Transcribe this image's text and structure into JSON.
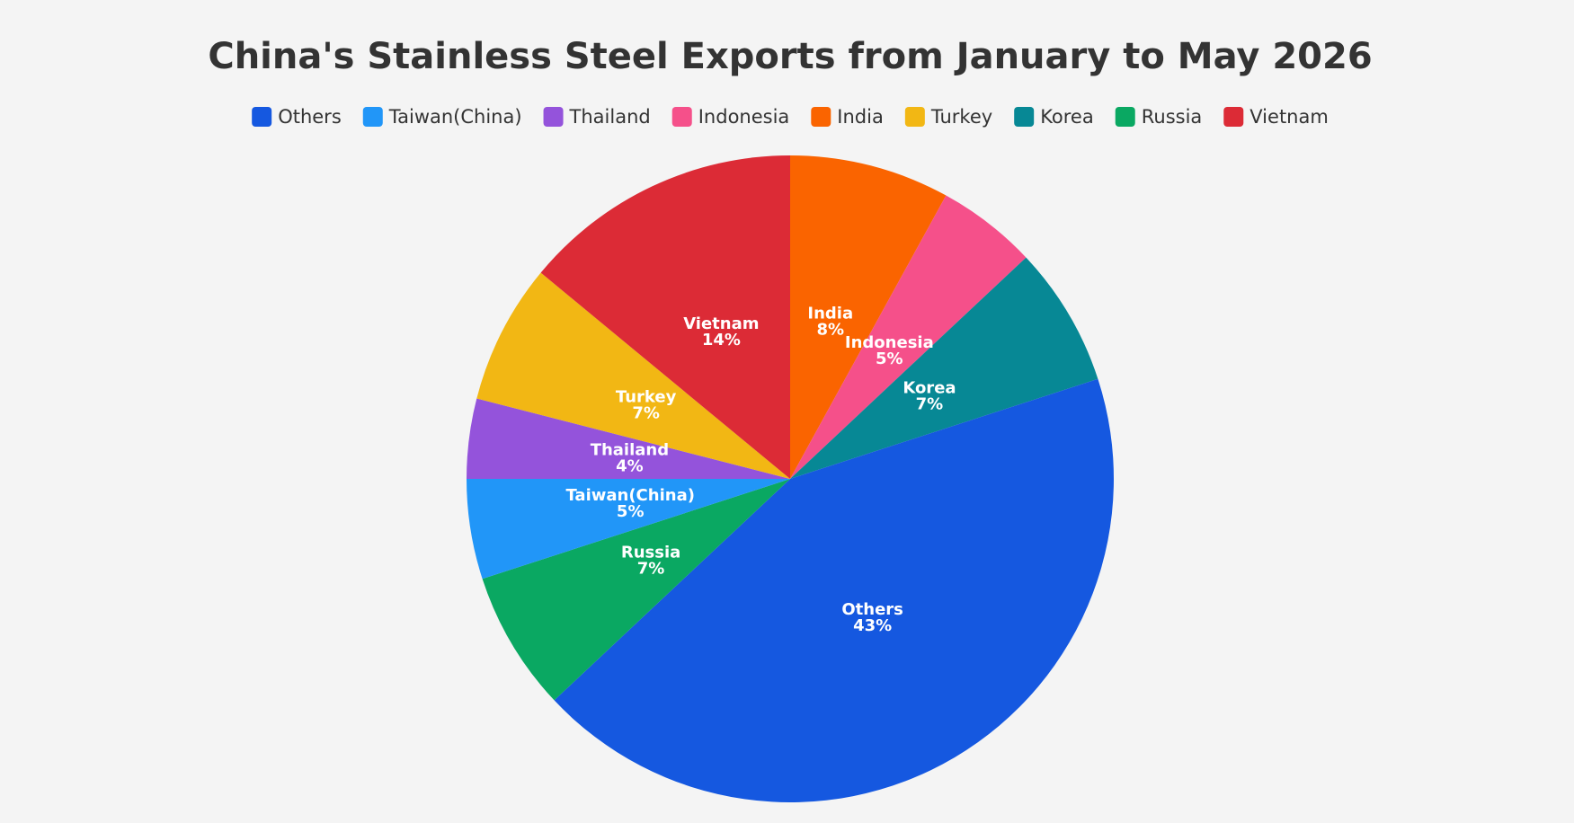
{
  "chart_data": {
    "type": "pie",
    "title": "China's Stainless Steel Exports from January to May 2026",
    "categories": [
      "Others",
      "Taiwan(China)",
      "Thailand",
      "Indonesia",
      "India",
      "Turkey",
      "Korea",
      "Russia",
      "Vietnam"
    ],
    "values": [
      43,
      5,
      4,
      5,
      8,
      7,
      7,
      7,
      14
    ],
    "value_labels": [
      "43%",
      "5%",
      "4%",
      "5%",
      "8%",
      "7%",
      "7%",
      "7%",
      "14%"
    ],
    "colors": [
      "#1558e0",
      "#2196f8",
      "#9453db",
      "#f5508a",
      "#fa6400",
      "#f2b714",
      "#078895",
      "#0aa862",
      "#dc2b36"
    ],
    "legend": "top"
  }
}
